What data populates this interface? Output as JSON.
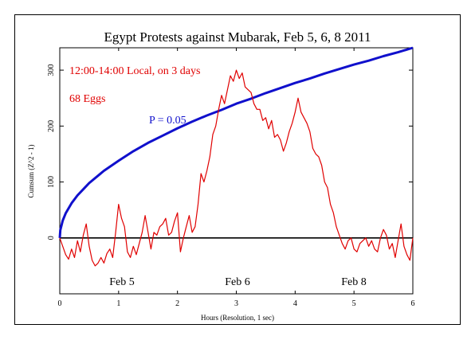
{
  "chart_data": {
    "type": "line",
    "title": "Egypt Protests against Mubarak, Feb 5, 6, 8 2011",
    "xlabel": "Hours (Resolution, 1 sec)",
    "ylabel": "Cumsum (Z^2 - 1)",
    "xlim": [
      0,
      6
    ],
    "ylim": [
      -100,
      340
    ],
    "xticks": [
      "0",
      "1",
      "2",
      "3",
      "4",
      "5",
      "6"
    ],
    "yticks": [
      "0",
      "100",
      "200",
      "300"
    ],
    "annotations": {
      "period": "12:00-14:00 Local, on 3 days",
      "eggs": "68 Eggs",
      "p_label": "P = 0.05",
      "days": [
        "Feb 5",
        "Feb 6",
        "Feb 8"
      ]
    },
    "series": [
      {
        "color": "#e00000",
        "x": [
          0,
          0.05,
          0.1,
          0.15,
          0.2,
          0.25,
          0.3,
          0.35,
          0.4,
          0.45,
          0.5,
          0.55,
          0.6,
          0.65,
          0.7,
          0.75,
          0.8,
          0.85,
          0.9,
          0.95,
          1.0,
          1.05,
          1.1,
          1.15,
          1.2,
          1.25,
          1.3,
          1.35,
          1.4,
          1.45,
          1.5,
          1.55,
          1.6,
          1.65,
          1.7,
          1.75,
          1.8,
          1.85,
          1.9,
          1.95,
          2.0,
          2.05,
          2.1,
          2.15,
          2.2,
          2.25,
          2.3,
          2.35,
          2.4,
          2.45,
          2.5,
          2.55,
          2.6,
          2.65,
          2.7,
          2.75,
          2.8,
          2.85,
          2.9,
          2.95,
          3.0,
          3.05,
          3.1,
          3.15,
          3.2,
          3.25,
          3.3,
          3.35,
          3.4,
          3.45,
          3.5,
          3.55,
          3.6,
          3.65,
          3.7,
          3.75,
          3.8,
          3.85,
          3.9,
          3.95,
          4.0,
          4.05,
          4.1,
          4.15,
          4.2,
          4.25,
          4.3,
          4.35,
          4.4,
          4.45,
          4.5,
          4.55,
          4.6,
          4.65,
          4.7,
          4.75,
          4.8,
          4.85,
          4.9,
          4.95,
          5.0,
          5.05,
          5.1,
          5.15,
          5.2,
          5.25,
          5.3,
          5.35,
          5.4,
          5.45,
          5.5,
          5.55,
          5.6,
          5.65,
          5.7,
          5.75,
          5.8,
          5.85,
          5.9,
          5.95,
          6.0
        ],
        "values": [
          0,
          -15,
          -30,
          -38,
          -20,
          -35,
          -5,
          -25,
          5,
          25,
          -15,
          -40,
          -50,
          -45,
          -35,
          -45,
          -28,
          -20,
          -35,
          10,
          60,
          35,
          20,
          -25,
          -35,
          -15,
          -30,
          -10,
          10,
          40,
          10,
          -20,
          10,
          5,
          20,
          25,
          35,
          5,
          10,
          30,
          45,
          -25,
          0,
          20,
          40,
          10,
          20,
          60,
          115,
          100,
          120,
          145,
          185,
          200,
          230,
          255,
          240,
          265,
          290,
          280,
          300,
          285,
          295,
          270,
          265,
          260,
          240,
          230,
          230,
          210,
          215,
          195,
          210,
          180,
          185,
          175,
          155,
          170,
          190,
          205,
          225,
          250,
          225,
          215,
          205,
          190,
          160,
          150,
          145,
          130,
          100,
          90,
          60,
          45,
          20,
          5,
          -10,
          -20,
          -5,
          0,
          -20,
          -25,
          -10,
          -5,
          0,
          -15,
          -5,
          -20,
          -25,
          0,
          15,
          5,
          -20,
          -10,
          -35,
          -5,
          25,
          -15,
          -30,
          -40,
          0
        ]
      },
      {
        "color": "#1010cc",
        "name": "P = 0.05",
        "x": [
          0,
          0.01,
          0.05,
          0.1,
          0.2,
          0.3,
          0.4,
          0.5,
          0.75,
          1.0,
          1.25,
          1.5,
          1.75,
          2.0,
          2.25,
          2.5,
          2.75,
          3.0,
          3.25,
          3.5,
          3.75,
          4.0,
          4.25,
          4.5,
          4.75,
          5.0,
          5.25,
          5.5,
          5.75,
          6.0
        ],
        "values": [
          0,
          14,
          31,
          44,
          62,
          76,
          87,
          98,
          120,
          138,
          155,
          170,
          183,
          196,
          208,
          219,
          229,
          240,
          249,
          259,
          268,
          277,
          285,
          294,
          302,
          310,
          317,
          325,
          332,
          340
        ]
      },
      {
        "color": "#000000",
        "x": [
          0,
          6
        ],
        "values": [
          0,
          0
        ]
      }
    ]
  }
}
